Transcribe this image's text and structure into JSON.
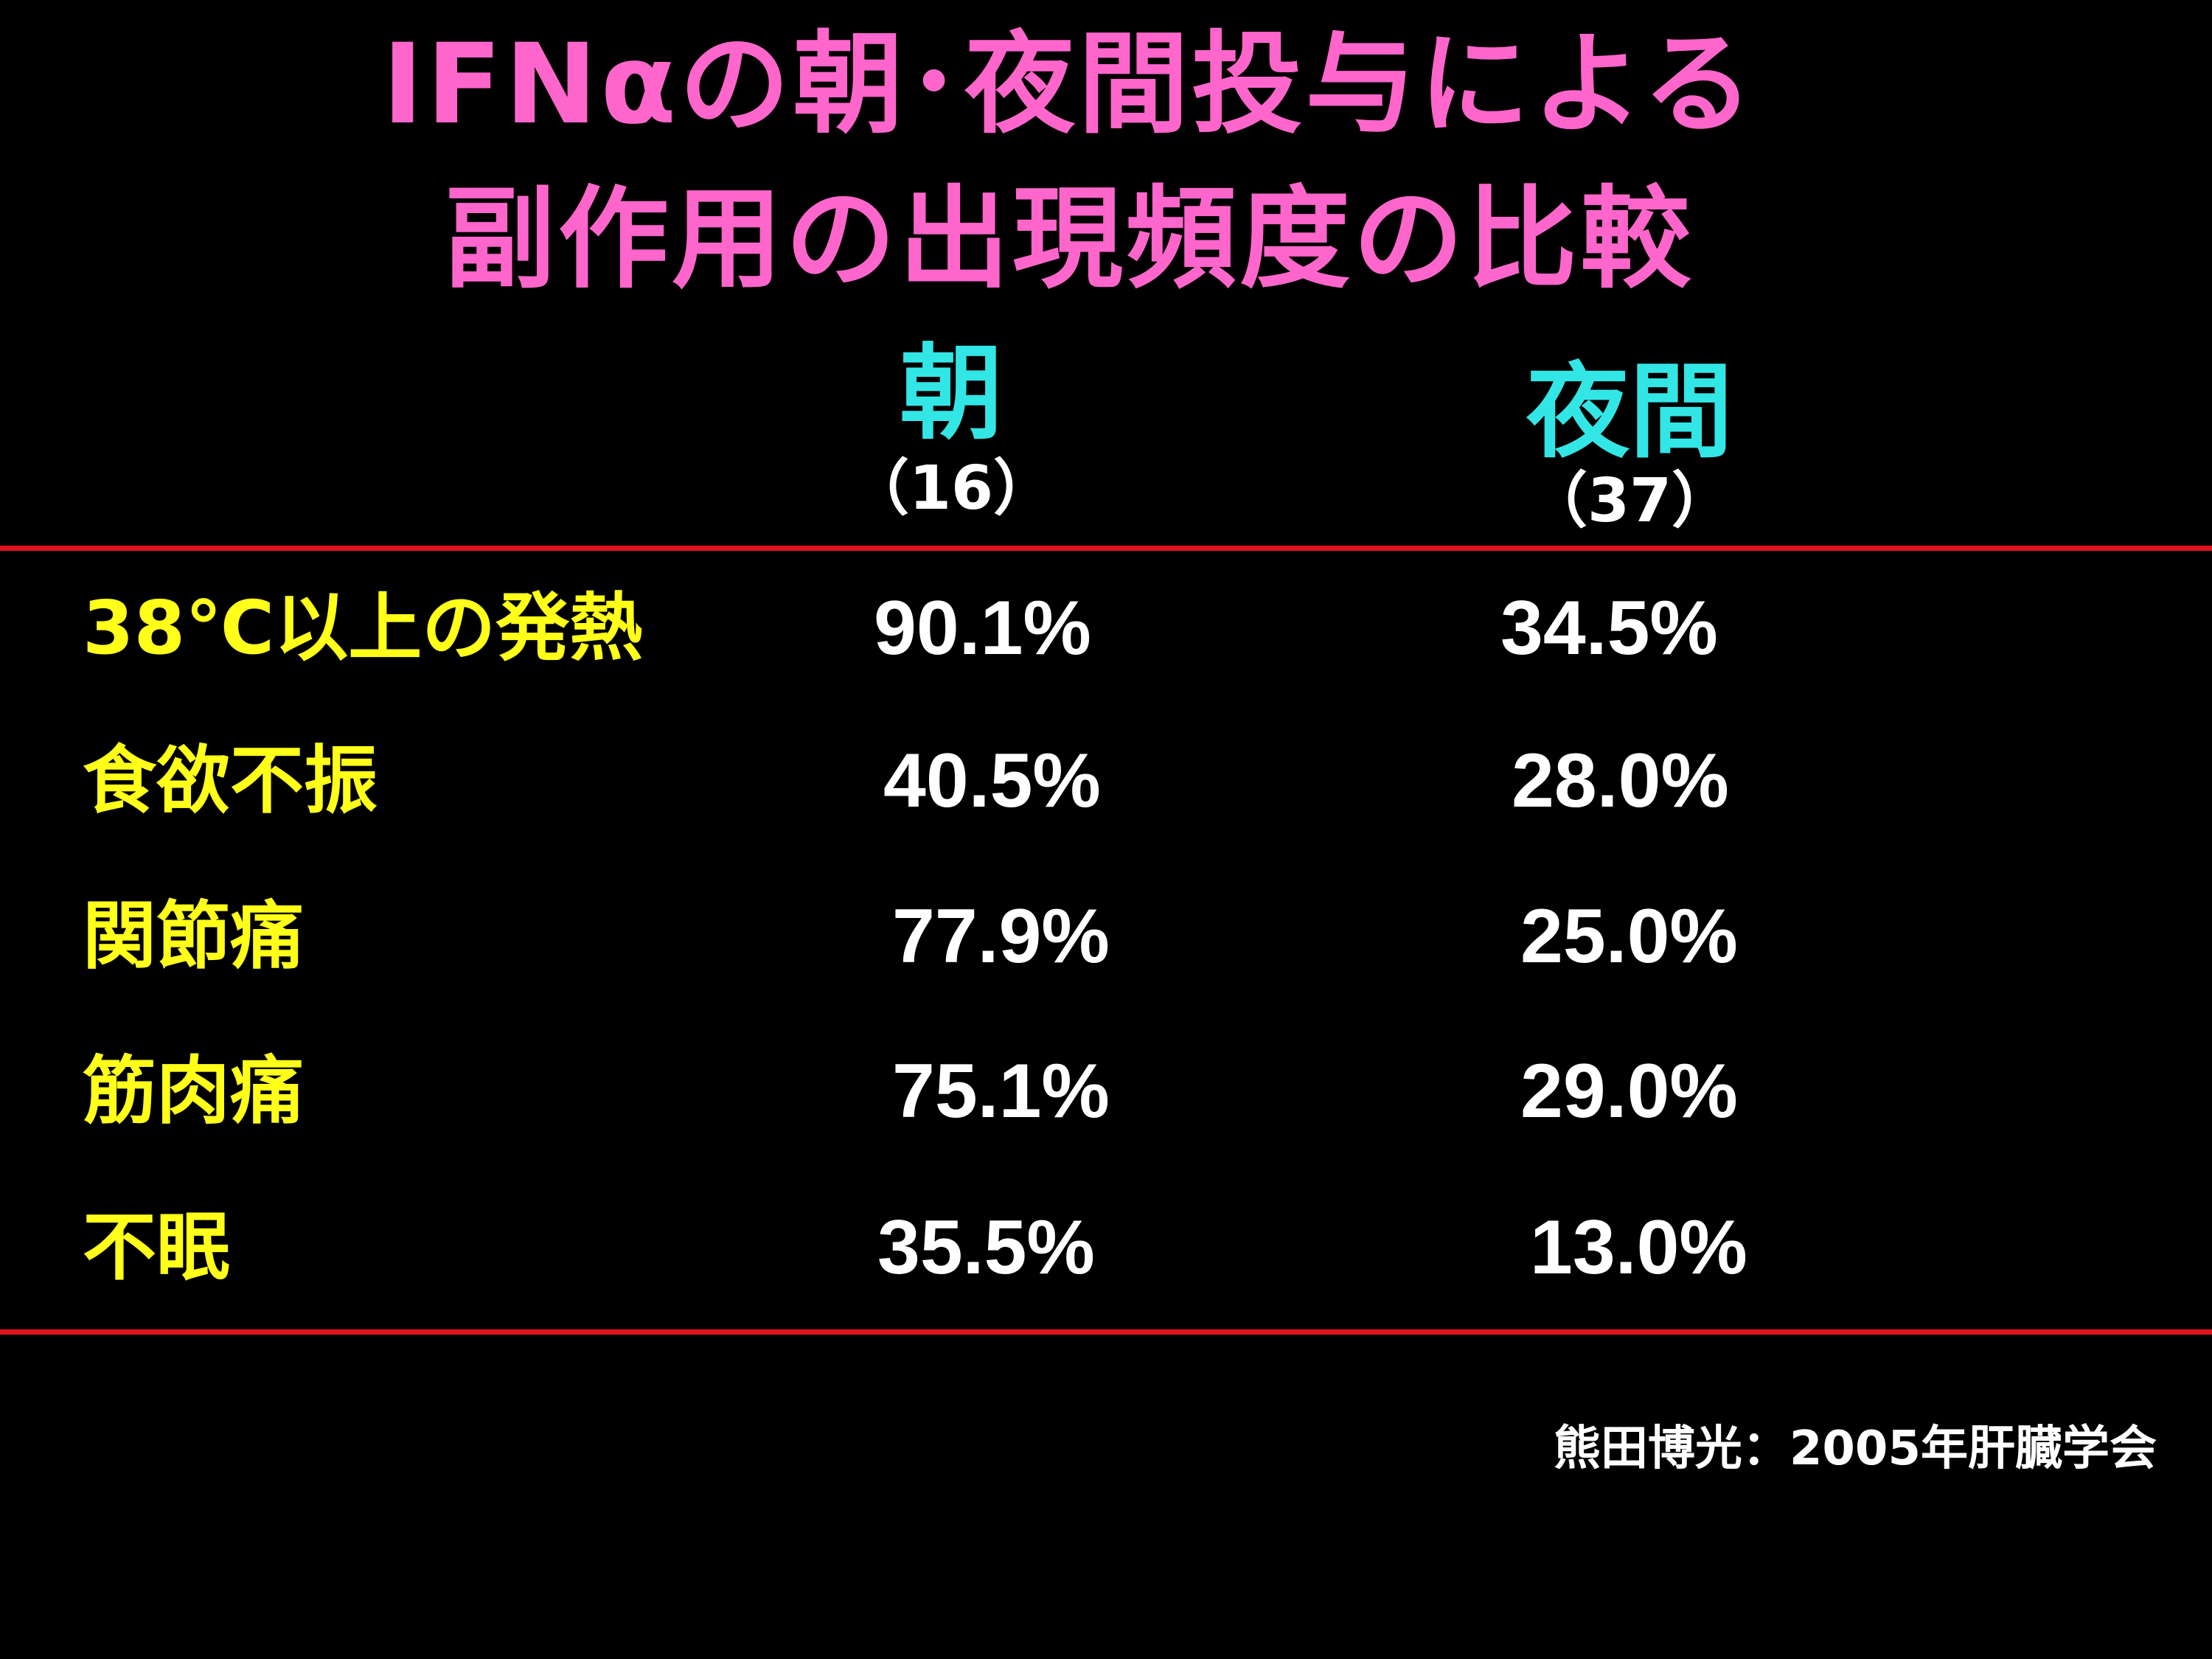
{
  "title": {
    "line1": "IFNαの朝･夜間投与による",
    "line2": "副作用の出現頻度の比較"
  },
  "columns": [
    {
      "label": "朝",
      "count": "（16）"
    },
    {
      "label": "夜間",
      "count": "（37）"
    }
  ],
  "rows": [
    {
      "label": "38℃以上の発熱",
      "morning": "90.1%",
      "night": "34.5%"
    },
    {
      "label": "食欲不振",
      "morning": "40.5%",
      "night": "28.0%"
    },
    {
      "label": "関節痛",
      "morning": "77.9%",
      "night": "25.0%"
    },
    {
      "label": "筋肉痛",
      "morning": "75.1%",
      "night": "29.0%"
    },
    {
      "label": "不眠",
      "morning": "35.5%",
      "night": "13.0%"
    }
  ],
  "citation": "熊田博光：2005年肝臓学会",
  "colors": {
    "background": "#000000",
    "title": "#ff66cc",
    "column_header": "#33e6e6",
    "row_label": "#ffff1a",
    "value": "#ffffff",
    "rule": "#e0141e"
  }
}
